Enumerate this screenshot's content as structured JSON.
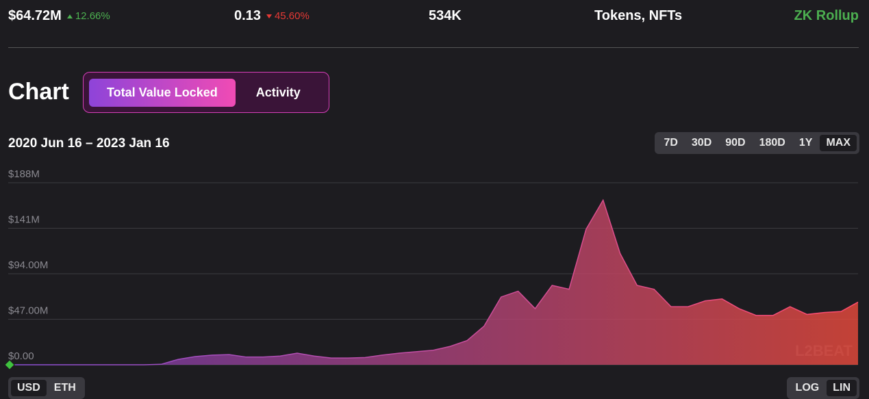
{
  "stats": [
    {
      "value": "$64.72M",
      "change": "12.66%",
      "direction": "up"
    },
    {
      "value": "0.13",
      "change": "45.60%",
      "direction": "down"
    },
    {
      "value": "534K"
    },
    {
      "value": "Tokens, NFTs"
    },
    {
      "value": "ZK Rollup",
      "highlight": true
    }
  ],
  "section_title": "Chart",
  "tabs": [
    "Total Value Locked",
    "Activity"
  ],
  "active_tab": 0,
  "date_range": "2020 Jun 16 – 2023 Jan 16",
  "range_buttons": [
    "7D",
    "30D",
    "90D",
    "180D",
    "1Y",
    "MAX"
  ],
  "active_range": 5,
  "currency_buttons": [
    "USD",
    "ETH"
  ],
  "active_currency": 0,
  "scale_buttons": [
    "LOG",
    "LIN"
  ],
  "active_scale": 1,
  "watermark": "L2BEAT",
  "chart_data": {
    "type": "area",
    "color_start": "#7d3fc8",
    "color_end": "#e0483a",
    "line_color_start": "#8a4fd6",
    "line_color_end": "#ff4d6d",
    "values": [
      0,
      0,
      0,
      0,
      0,
      0,
      0,
      0,
      0,
      0.5,
      5.6,
      8.5,
      10,
      10.5,
      8,
      8,
      9,
      12,
      9,
      7,
      7,
      7.5,
      10,
      12,
      13.5,
      15,
      19,
      25,
      40,
      70,
      76,
      58,
      82,
      78,
      140,
      170,
      115,
      82,
      78,
      60,
      60,
      66,
      68,
      58,
      51,
      51,
      60,
      52,
      54,
      55,
      64.72
    ],
    "ylim": [
      0,
      188
    ],
    "yticks": [
      {
        "value": 0,
        "label": "$0.00"
      },
      {
        "value": 47,
        "label": "$47.00M"
      },
      {
        "value": 94,
        "label": "$94.00M"
      },
      {
        "value": 141,
        "label": "$141M"
      },
      {
        "value": 188,
        "label": "$188M"
      }
    ],
    "grid": true
  }
}
